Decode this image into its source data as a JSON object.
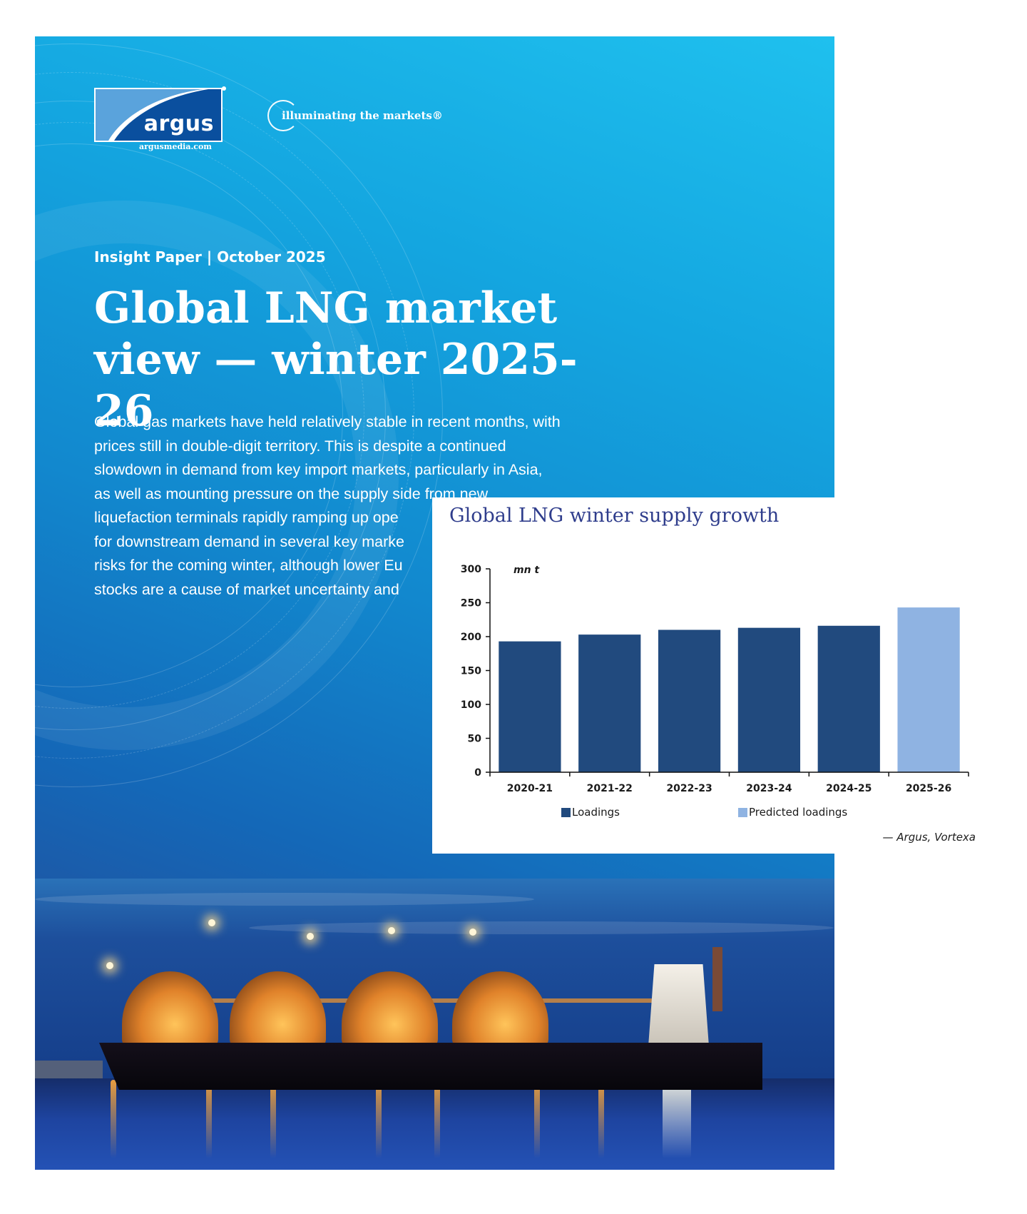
{
  "document": {
    "brand": {
      "logo_word": "argus",
      "logo_url": "argusmedia.com",
      "tagline": "illuminating the markets®"
    },
    "kicker": "Insight Paper | October 2025",
    "title_lines": [
      "Global LNG market",
      "view — winter 2025-26"
    ],
    "lede_lines": [
      "Global gas markets have held relatively stable in recent months, with",
      "prices still in double-digit territory. This is despite a continued",
      "slowdown in demand from key import markets, particularly in Asia,",
      "as well as mounting pressure on the supply side from new",
      "liquefaction terminals rapidly ramping up ope",
      "for downstream demand in several key marke",
      "risks for the coming winter, although lower Eu",
      "stocks are a cause of market uncertainty and"
    ],
    "colors": {
      "page_top": "#1fc0ee",
      "page_bottom": "#1c5aa8",
      "logo_blue": "#0a4f9e"
    }
  },
  "chart": {
    "title": "Global LNG winter supply growth",
    "unit_label": "mn t",
    "source": "— Argus, Vortexa",
    "legend": [
      {
        "label": "Loadings",
        "color": "#214a7e"
      },
      {
        "label": "Predicted loadings",
        "color": "#8fb3e2"
      }
    ]
  },
  "chart_data": {
    "type": "bar",
    "title": "Global LNG winter supply growth",
    "xlabel": "",
    "ylabel": "mn t",
    "categories": [
      "2020-21",
      "2021-22",
      "2022-23",
      "2023-24",
      "2024-25",
      "2025-26"
    ],
    "series": [
      {
        "name": "Loadings",
        "color": "#214a7e",
        "values": [
          193,
          203,
          210,
          213,
          216,
          null
        ]
      },
      {
        "name": "Predicted loadings",
        "color": "#8fb3e2",
        "values": [
          null,
          null,
          null,
          null,
          null,
          243
        ]
      }
    ],
    "yticks": [
      0,
      50,
      100,
      150,
      200,
      250,
      300
    ],
    "ylim": [
      0,
      300
    ],
    "grid": false,
    "legend_position": "bottom",
    "annotations": [
      "— Argus, Vortexa"
    ]
  }
}
